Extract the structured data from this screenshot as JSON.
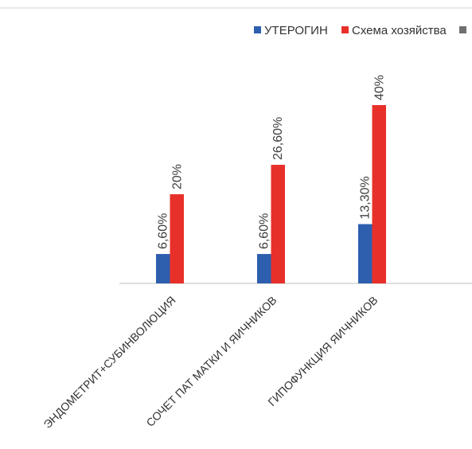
{
  "chart_data": {
    "type": "bar",
    "categories": [
      "ЭНДОМЕТРИТ+СУБИНВОЛЮЦИЯ",
      "СОЧЕТ ПАТ МАТКИ И ЯИЧНИКОВ",
      "ГИПОФУНКЦИЯ ЯИЧНИКОВ"
    ],
    "series": [
      {
        "name": "УТЕРОГИН",
        "color": "#2e5faf",
        "values": [
          6.6,
          6.6,
          13.3
        ],
        "value_labels": [
          "6,60%",
          "6,60%",
          "13,30%"
        ]
      },
      {
        "name": "Схема хозяйства",
        "color": "#e8302a",
        "values": [
          20,
          26.6,
          40
        ],
        "value_labels": [
          "20%",
          "26,60%",
          "40%"
        ]
      },
      {
        "color": "#6f6f6f",
        "values": [
          null,
          null,
          null
        ]
      }
    ]
  }
}
